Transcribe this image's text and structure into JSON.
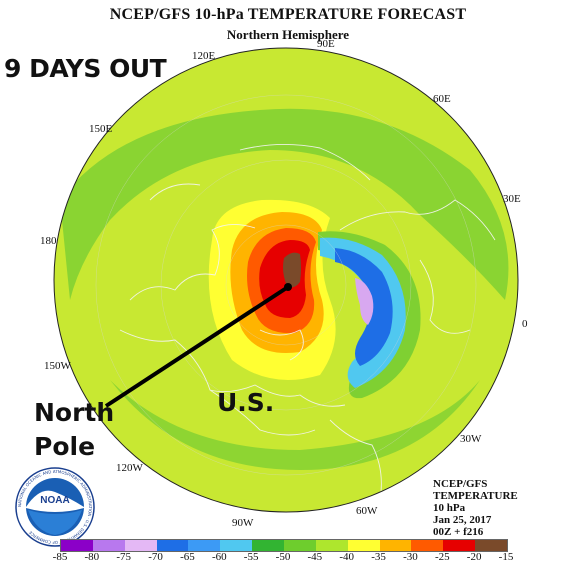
{
  "title": "NCEP/GFS 10-hPa TEMPERATURE FORECAST",
  "subtitle": "Northern Hemisphere",
  "headline": "9 DAYS OUT",
  "longitude_labels": [
    "90E",
    "120E",
    "60E",
    "150E",
    "30E",
    "180",
    "0",
    "150W",
    "30W",
    "120W",
    "60W",
    "90W"
  ],
  "annotations": {
    "north_pole": [
      "North",
      "Pole"
    ],
    "us": "U.S."
  },
  "info_box": [
    "NCEP/GFS",
    "TEMPERATURE",
    "10 hPa",
    "Jan 25, 2017",
    "00Z + f216"
  ],
  "logo": {
    "name": "NOAA",
    "ring_text": "NATIONAL OCEANIC AND ATMOSPHERIC ADMINISTRATION · U.S. DEPARTMENT OF COMMERCE"
  },
  "colorbar": {
    "ticks": [
      "-85",
      "-80",
      "-75",
      "-70",
      "-65",
      "-60",
      "-55",
      "-50",
      "-45",
      "-40",
      "-35",
      "-30",
      "-25",
      "-20",
      "-15"
    ],
    "colors": [
      "#8b00c8",
      "#b878ee",
      "#e4b8f5",
      "#1e6ee6",
      "#3c9af5",
      "#50c8f0",
      "#32b432",
      "#6ecd2d",
      "#aee62d",
      "#ffff32",
      "#ffb400",
      "#ff5a00",
      "#e60000",
      "#7a4a2a"
    ]
  },
  "map_colors": {
    "background": "#c8e832",
    "ring": "#7fd032",
    "warm_1": "#ffff32",
    "warm_2": "#ffb400",
    "warm_3": "#ff5a00",
    "warm_4": "#e60000",
    "warm_5": "#7a4a2a",
    "cold_1": "#50c8f0",
    "cold_2": "#1e6ee6",
    "cold_3": "#d8a8f0"
  }
}
